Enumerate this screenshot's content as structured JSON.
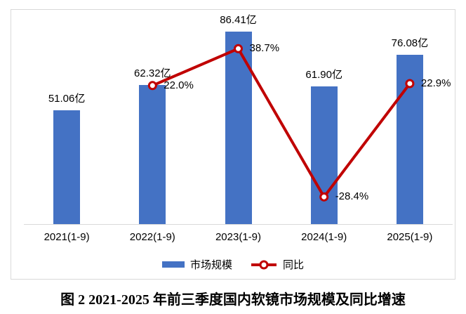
{
  "caption": "图 2 2021-2025 年前三季度国内软镜市场规模及同比增速",
  "colors": {
    "bar": "#4472c4",
    "line": "#c00000",
    "marker_fill": "#ffffff",
    "axis": "#d9d9d9",
    "frame_border": "#d9d9d9",
    "text": "#000000"
  },
  "legend": [
    {
      "label": "市场规模",
      "type": "bar"
    },
    {
      "label": "同比",
      "type": "line"
    }
  ],
  "chart_data": {
    "type": "bar+line",
    "title": "",
    "categories": [
      "2021(1-9)",
      "2022(1-9)",
      "2023(1-9)",
      "2024(1-9)",
      "2025(1-9)"
    ],
    "series": [
      {
        "name": "市场规模",
        "type": "bar",
        "unit": "亿",
        "values": [
          51.06,
          62.32,
          86.41,
          61.9,
          76.08
        ],
        "labels": [
          "51.06亿",
          "62.32亿",
          "86.41亿",
          "61.90亿",
          "76.08亿"
        ]
      },
      {
        "name": "同比",
        "type": "line",
        "unit": "%",
        "values": [
          null,
          22.0,
          38.7,
          -28.4,
          22.9
        ],
        "labels": [
          null,
          "22.0%",
          "38.7%",
          "-28.4%",
          "22.9%"
        ]
      }
    ],
    "layout_hints": {
      "bar_axis_range": [
        0,
        95
      ],
      "line_axis_range": [
        -55,
        55
      ],
      "gridlines": false,
      "legend_position": "bottom",
      "data_labels": "outside-end / right-of-marker"
    }
  }
}
